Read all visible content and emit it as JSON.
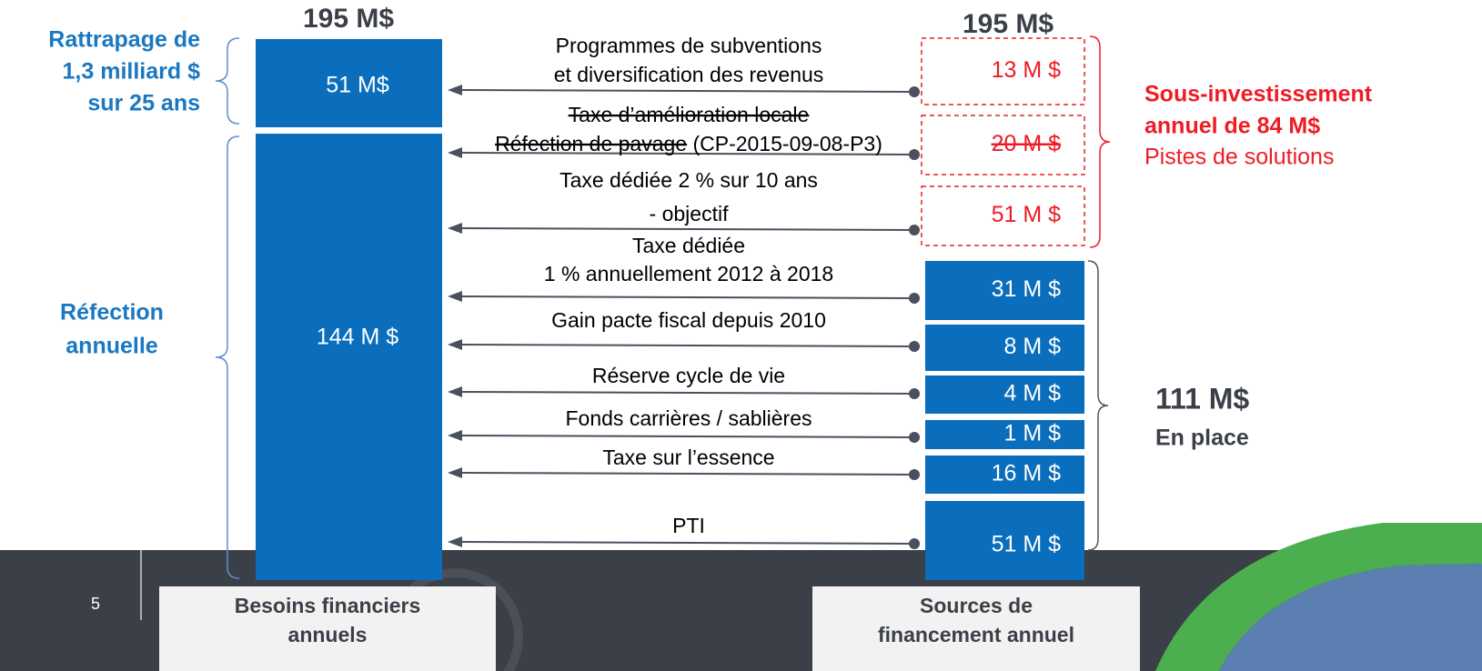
{
  "header": {
    "left_total": "195 M$",
    "right_total": "195 M$"
  },
  "left_labels": {
    "catch_up": [
      "Rattrapage de",
      "1,3 milliard $",
      "sur 25 ans"
    ],
    "annual": [
      "Réfection",
      "annuelle"
    ]
  },
  "needs": [
    {
      "amount": "51 M$"
    },
    {
      "amount": "144 M $"
    }
  ],
  "proposed_sources": [
    {
      "lines": [
        "Programmes de subventions",
        "et diversification des revenus"
      ],
      "amount": "13 M $"
    },
    {
      "lines": [
        "Taxe d’amélioration locale",
        "Réfection de pavage",
        "(CP-2015-09-08-P3)"
      ],
      "amount": "20 M $"
    },
    {
      "lines": [
        "Taxe dédiée 2 % sur 10 ans",
        "- objectif"
      ],
      "amount": "51 M $"
    }
  ],
  "proposed_summary": {
    "title": [
      "Sous-investissement",
      "annuel de 84 M$"
    ],
    "subtitle": "Pistes de solutions"
  },
  "existing_sources": [
    {
      "lines": [
        "Taxe dédiée",
        "1 % annuellement 2012 à 2018"
      ],
      "amount": "31 M $"
    },
    {
      "lines": [
        "Gain pacte fiscal depuis 2010"
      ],
      "amount": "8 M $"
    },
    {
      "lines": [
        "Réserve cycle de vie"
      ],
      "amount": "4 M $"
    },
    {
      "lines": [
        "Fonds carrières / sablières"
      ],
      "amount": "1 M $"
    },
    {
      "lines": [
        "Taxe sur l’essence"
      ],
      "amount": "16 M $"
    },
    {
      "lines": [
        "PTI"
      ],
      "amount": "51 M $"
    }
  ],
  "existing_summary": {
    "total": "111 M$",
    "subtitle": "En place"
  },
  "footer": {
    "page_number": "5",
    "left_caption": [
      "Besoins financiers",
      "annuels"
    ],
    "right_caption": [
      "Sources de",
      "financement annuel"
    ]
  }
}
